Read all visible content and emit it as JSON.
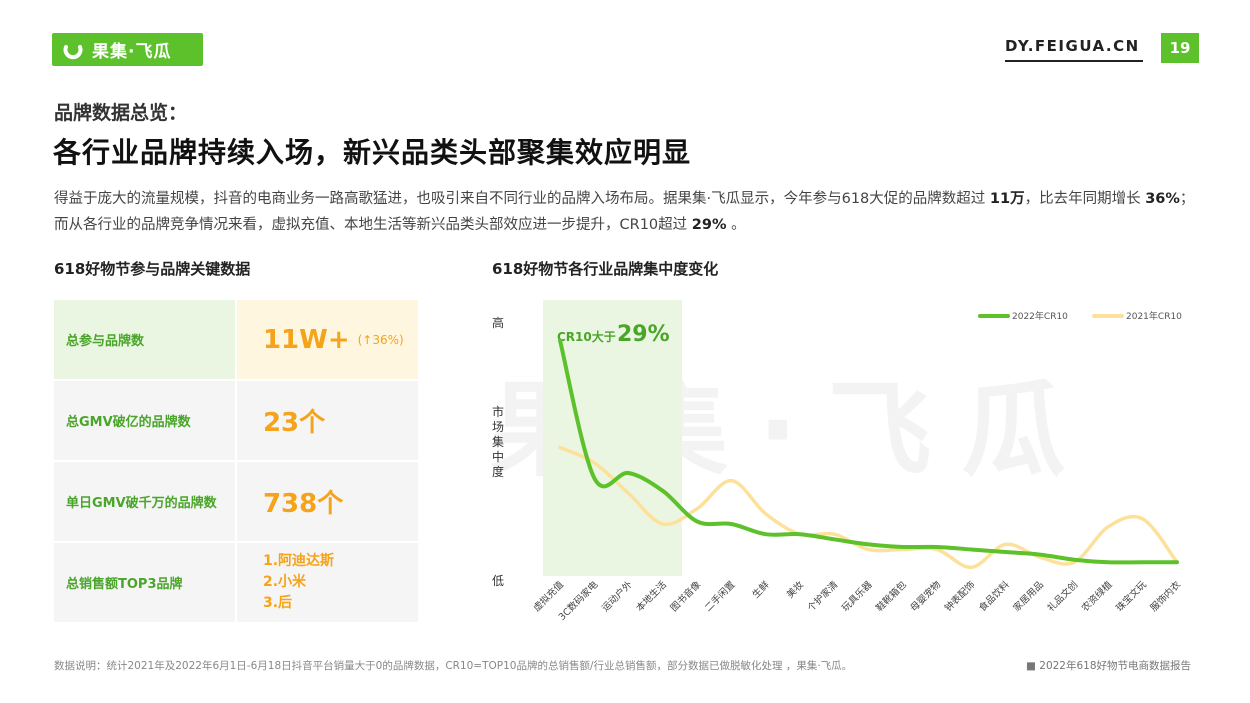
{
  "header": {
    "logo_text": "果集·飞瓜",
    "site": "DY.FEIGUA.CN",
    "page_number": "19",
    "brand_color": "#5cc12b"
  },
  "subtitle": "品牌数据总览：",
  "headline": "各行业品牌持续入场，新兴品类头部聚集效应明显",
  "description": {
    "p1": "得益于庞大的流量规模，抖音的电商业务一路高歌猛进，也吸引来自不同行业的品牌入场布局。据果集·飞瓜显示，今年参与618大促的品牌数超过 ",
    "v1": "11万",
    "p2": "，比去年同期增长 ",
    "v2": "36%",
    "p3": "；而从各行业的品牌竞争情况来看，虚拟充值、本地生活等新兴品类头部效应进一步提升，CR10超过 ",
    "v3": "29%",
    "p4": " 。"
  },
  "kpi_section": {
    "title": "618好物节参与品牌关键数据",
    "rows": [
      {
        "label": "总参与品牌数",
        "value": "11W+",
        "note": "(↑36%)"
      },
      {
        "label": "总GMV破亿的品牌数",
        "value": "23个"
      },
      {
        "label": "单日GMV破千万的品牌数",
        "value": "738个"
      },
      {
        "label": "总销售额TOP3品牌",
        "list": [
          "1.阿迪达斯",
          "2.小米",
          "3.后"
        ]
      }
    ]
  },
  "chart_section": {
    "title": "618好物节各行业品牌集中度变化"
  },
  "chart_data": {
    "type": "line",
    "title": "618好物节各行业品牌集中度变化",
    "ylabel": "市场集中度",
    "y_high": "高",
    "y_low": "低",
    "annotation": {
      "text": "CR10大于",
      "value": "29%"
    },
    "categories": [
      "虚拟充值",
      "3C数码家电",
      "运动户外",
      "本地生活",
      "图书音像",
      "二手闲置",
      "生鲜",
      "美妆",
      "个护家清",
      "玩具乐器",
      "鞋靴箱包",
      "母婴宠物",
      "钟表配饰",
      "食品饮料",
      "家居用品",
      "礼品文创",
      "农资绿植",
      "珠宝文玩",
      "服饰内衣"
    ],
    "series": [
      {
        "name": "2022年CR10",
        "color": "#5cc12b",
        "values": [
          92,
          38,
          40,
          33,
          21,
          20,
          16,
          16,
          14,
          12,
          11,
          11,
          10,
          9,
          8,
          6,
          5,
          5,
          5
        ]
      },
      {
        "name": "2021年CR10",
        "color": "#fde19a",
        "values": [
          50,
          44,
          32,
          20,
          26,
          37,
          24,
          16,
          16,
          10,
          10,
          10,
          3,
          12,
          7,
          5,
          19,
          22,
          5
        ]
      }
    ],
    "ylim": [
      0,
      100
    ],
    "legend": "top-right"
  },
  "footer": {
    "note": "数据说明：统计2021年及2022年6月1日-6月18日抖音平台销量大于0的品牌数据，CR10=TOP10品牌的总销售额/行业总销售额，部分数据已做脱敏化处理 ，果集·飞瓜。",
    "source": "■ 2022年618好物节电商数据报告"
  }
}
